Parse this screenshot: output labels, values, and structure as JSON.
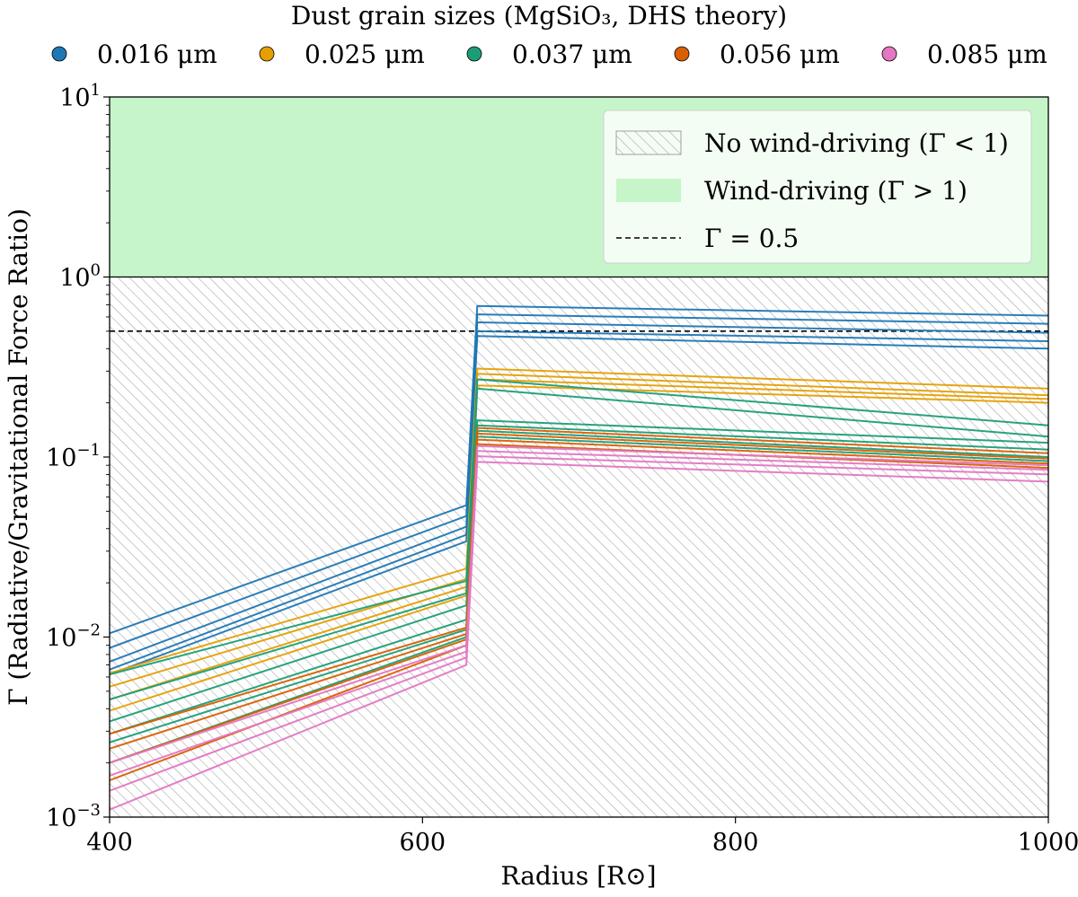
{
  "chart_data": {
    "type": "line",
    "title": "Dust grain sizes (MgSiO₃, DHS theory)",
    "xlabel": "Radius [R⊙]",
    "ylabel": "Γ (Radiative/Gravitational Force Ratio)",
    "xlim": [
      400,
      1000
    ],
    "ylim": [
      0.001,
      10
    ],
    "yscale": "log",
    "xticks": [
      {
        "value": 400,
        "label": "400"
      },
      {
        "value": 600,
        "label": "600"
      },
      {
        "value": 800,
        "label": "800"
      },
      {
        "value": 1000,
        "label": "1000"
      }
    ],
    "yticks": [
      {
        "value": 0.001,
        "base": "10",
        "exp": "−3"
      },
      {
        "value": 0.01,
        "base": "10",
        "exp": "−2"
      },
      {
        "value": 0.1,
        "base": "10",
        "exp": "−1"
      },
      {
        "value": 1,
        "base": "10",
        "exp": "0"
      },
      {
        "value": 10,
        "base": "10",
        "exp": "1"
      }
    ],
    "regions": [
      {
        "label": "No wind-driving (Γ < 1)",
        "y_range": [
          0.001,
          1
        ],
        "style": "hatched",
        "color": "#a0a0a0"
      },
      {
        "label": "Wind-driving (Γ > 1)",
        "y_range": [
          1,
          10
        ],
        "style": "filled",
        "color": "#c5f5c8"
      }
    ],
    "reference_lines": [
      {
        "label": "Γ = 0.5",
        "y": 0.5,
        "style": "dashed",
        "color": "#000000"
      }
    ],
    "legend_position": "top-right",
    "size_legend_position": "top-outside",
    "series": [
      {
        "name": "0.016 μm",
        "color": "#1f77b4",
        "lines": [
          {
            "x": [
              400,
              628,
              635,
              1000
            ],
            "y": [
              0.0105,
              0.054,
              0.69,
              0.61
            ]
          },
          {
            "x": [
              400,
              628,
              635,
              1000
            ],
            "y": [
              0.0087,
              0.047,
              0.62,
              0.55
            ]
          },
          {
            "x": [
              400,
              628,
              635,
              1000
            ],
            "y": [
              0.0073,
              0.041,
              0.56,
              0.49
            ]
          },
          {
            "x": [
              400,
              628,
              635,
              1000
            ],
            "y": [
              0.0066,
              0.037,
              0.5,
              0.44
            ]
          },
          {
            "x": [
              400,
              628,
              635,
              1000
            ],
            "y": [
              0.0062,
              0.034,
              0.47,
              0.4
            ]
          }
        ]
      },
      {
        "name": "0.025 μm",
        "color": "#e69f00",
        "lines": [
          {
            "x": [
              400,
              628,
              635,
              1000
            ],
            "y": [
              0.0063,
              0.024,
              0.31,
              0.24
            ]
          },
          {
            "x": [
              400,
              628,
              635,
              1000
            ],
            "y": [
              0.0053,
              0.021,
              0.29,
              0.22
            ]
          },
          {
            "x": [
              400,
              628,
              635,
              1000
            ],
            "y": [
              0.0045,
              0.019,
              0.27,
              0.21
            ]
          },
          {
            "x": [
              400,
              628,
              635,
              1000
            ],
            "y": [
              0.0039,
              0.017,
              0.25,
              0.2
            ]
          }
        ]
      },
      {
        "name": "0.037 μm",
        "color": "#1b9e77",
        "lines": [
          {
            "x": [
              400,
              628,
              635,
              1000
            ],
            "y": [
              0.0062,
              0.0205,
              0.27,
              0.15
            ]
          },
          {
            "x": [
              400,
              628,
              635,
              1000
            ],
            "y": [
              0.0045,
              0.0175,
              0.24,
              0.13
            ]
          },
          {
            "x": [
              400,
              628,
              635,
              1000
            ],
            "y": [
              0.0034,
              0.015,
              0.16,
              0.12
            ]
          },
          {
            "x": [
              400,
              628,
              635,
              1000
            ],
            "y": [
              0.0029,
              0.0125,
              0.15,
              0.11
            ]
          },
          {
            "x": [
              400,
              628,
              635,
              1000
            ],
            "y": [
              0.0026,
              0.011,
              0.14,
              0.1
            ]
          },
          {
            "x": [
              400,
              628,
              635,
              1000
            ],
            "y": [
              0.002,
              0.01,
              0.13,
              0.095
            ]
          }
        ]
      },
      {
        "name": "0.056 μm",
        "color": "#d95f02",
        "lines": [
          {
            "x": [
              400,
              628,
              635,
              1000
            ],
            "y": [
              0.0029,
              0.0113,
              0.145,
              0.105
            ]
          },
          {
            "x": [
              400,
              628,
              635,
              1000
            ],
            "y": [
              0.0024,
              0.0104,
              0.135,
              0.098
            ]
          },
          {
            "x": [
              400,
              628,
              635,
              1000
            ],
            "y": [
              0.002,
              0.0097,
              0.125,
              0.092
            ]
          },
          {
            "x": [
              400,
              628,
              635,
              1000
            ],
            "y": [
              0.0016,
              0.009,
              0.118,
              0.087
            ]
          }
        ]
      },
      {
        "name": "0.085 μm",
        "color": "#e377c2",
        "lines": [
          {
            "x": [
              400,
              628,
              635,
              1000
            ],
            "y": [
              0.002,
              0.009,
              0.115,
              0.09
            ]
          },
          {
            "x": [
              400,
              628,
              635,
              1000
            ],
            "y": [
              0.0017,
              0.0083,
              0.108,
              0.085
            ]
          },
          {
            "x": [
              400,
              628,
              635,
              1000
            ],
            "y": [
              0.0014,
              0.0077,
              0.101,
              0.08
            ]
          },
          {
            "x": [
              400,
              628,
              635,
              1000
            ],
            "y": [
              0.0011,
              0.007,
              0.094,
              0.073
            ]
          }
        ]
      }
    ]
  }
}
